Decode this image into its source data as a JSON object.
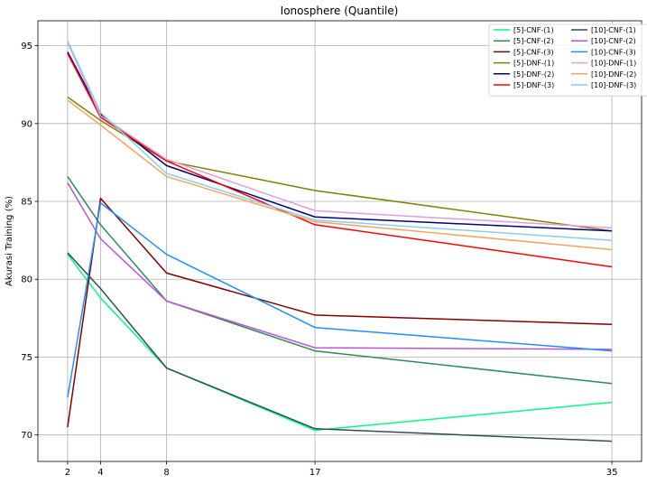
{
  "chart_data": {
    "type": "line",
    "title": "Ionosphere (Quantile)",
    "xlabel": "",
    "ylabel": "Akurasi Training (%)",
    "x": [
      2,
      4,
      8,
      17,
      35
    ],
    "xticks": [
      "2",
      "4",
      "8",
      "17",
      "35"
    ],
    "xlim": [
      0.2,
      36.8
    ],
    "ylim": [
      68.3,
      96.6
    ],
    "yticks": [
      70,
      75,
      80,
      85,
      90,
      95
    ],
    "grid": true,
    "legend_position": "top-right",
    "legend_columns": 2,
    "series": [
      {
        "name": "[5]-CNF-(1)",
        "color": "#00ff7f",
        "values": [
          81.6,
          78.8,
          74.3,
          70.3,
          72.1
        ]
      },
      {
        "name": "[5]-CNF-(2)",
        "color": "#2e8b57",
        "values": [
          86.6,
          83.5,
          78.6,
          75.4,
          73.3
        ]
      },
      {
        "name": "[5]-CNF-(3)",
        "color": "#800000",
        "values": [
          70.5,
          85.2,
          80.4,
          77.7,
          77.1
        ]
      },
      {
        "name": "[5]-DNF-(1)",
        "color": "#808000",
        "values": [
          91.7,
          90.2,
          87.6,
          85.7,
          83.1
        ]
      },
      {
        "name": "[5]-DNF-(2)",
        "color": "#000080",
        "values": [
          94.6,
          90.6,
          87.3,
          84.0,
          83.1
        ]
      },
      {
        "name": "[5]-DNF-(3)",
        "color": "#ff0000",
        "values": [
          94.5,
          90.4,
          87.6,
          83.5,
          80.8
        ]
      },
      {
        "name": "[10]-CNF-(1)",
        "color": "#2f4f4f",
        "values": [
          81.7,
          79.4,
          74.3,
          70.4,
          69.6
        ]
      },
      {
        "name": "[10]-CNF-(2)",
        "color": "#ba55d3",
        "values": [
          86.2,
          82.6,
          78.6,
          75.6,
          75.5
        ]
      },
      {
        "name": "[10]-CNF-(3)",
        "color": "#1e90ff",
        "values": [
          72.4,
          84.9,
          81.6,
          76.9,
          75.4
        ]
      },
      {
        "name": "[10]-DNF-(1)",
        "color": "#dda0dd",
        "values": [
          95.2,
          90.5,
          87.7,
          84.4,
          83.3
        ]
      },
      {
        "name": "[10]-DNF-(2)",
        "color": "#f4a460",
        "values": [
          91.5,
          89.9,
          86.6,
          83.7,
          81.9
        ]
      },
      {
        "name": "[10]-DNF-(3)",
        "color": "#87ceeb",
        "values": [
          95.3,
          90.7,
          86.8,
          83.8,
          82.5
        ]
      }
    ]
  }
}
